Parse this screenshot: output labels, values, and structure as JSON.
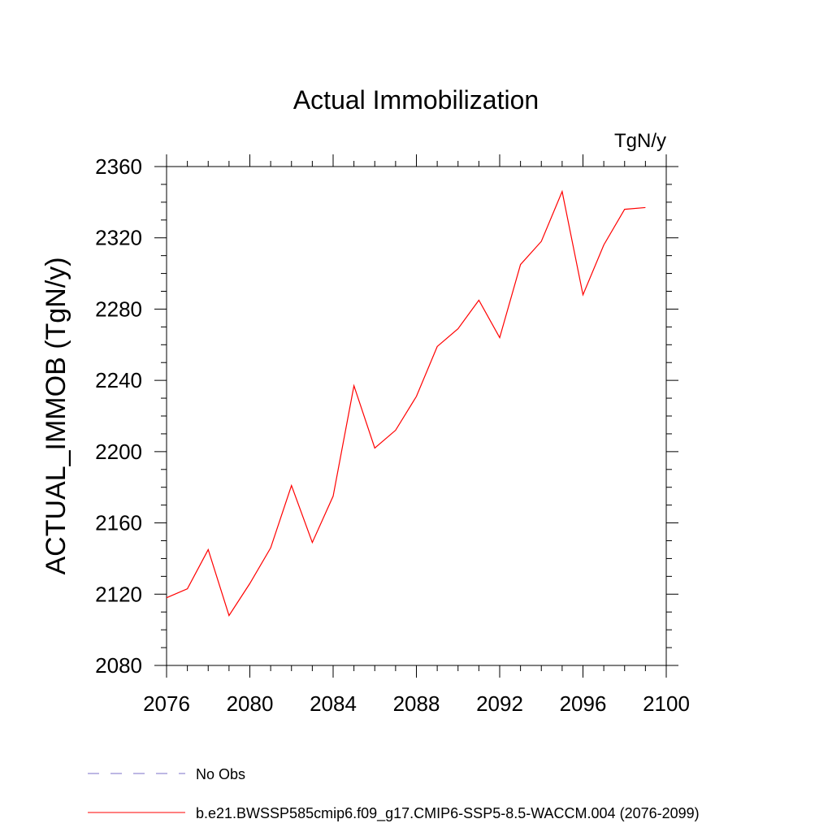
{
  "chart_data": {
    "type": "line",
    "title": "Actual Immobilization",
    "units_label": "TgN/y",
    "ylabel": "ACTUAL_IMMOB  (TgN/y)",
    "xlabel": "",
    "xlim": [
      2076,
      2100
    ],
    "ylim": [
      2080,
      2360
    ],
    "x_ticks": [
      2076,
      2080,
      2084,
      2088,
      2092,
      2096,
      2100
    ],
    "y_ticks": [
      2080,
      2120,
      2160,
      2200,
      2240,
      2280,
      2320,
      2360
    ],
    "grid": false,
    "legend_position": "bottom",
    "series": [
      {
        "name": "b.e21.BWSSP585cmip6.f09_g17.CMIP6-SSP5-8.5-WACCM.004 (2076-2099)",
        "color": "#ff0000",
        "style": "solid",
        "x": [
          2076,
          2077,
          2078,
          2079,
          2080,
          2081,
          2082,
          2083,
          2084,
          2085,
          2086,
          2087,
          2088,
          2089,
          2090,
          2091,
          2092,
          2093,
          2094,
          2095,
          2096,
          2097,
          2098,
          2099
        ],
        "values": [
          2118,
          2123,
          2145,
          2108,
          2126,
          2146,
          2181,
          2149,
          2175,
          2237,
          2202,
          2212,
          2231,
          2259,
          2269,
          2285,
          2264,
          2305,
          2318,
          2346,
          2288,
          2316,
          2336,
          2337
        ]
      }
    ],
    "legend": [
      {
        "label": "No Obs",
        "color": "#7b72c9",
        "style": "dashed"
      },
      {
        "label": "b.e21.BWSSP585cmip6.f09_g17.CMIP6-SSP5-8.5-WACCM.004 (2076-2099)",
        "color": "#ff0000",
        "style": "solid"
      }
    ]
  }
}
